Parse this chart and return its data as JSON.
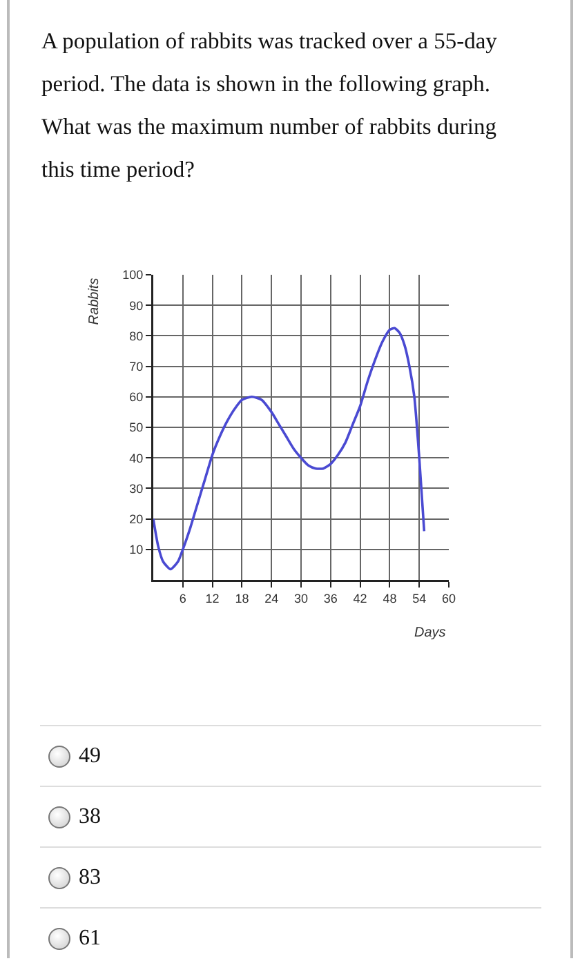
{
  "chart_data": {
    "type": "line",
    "title": "A population of rabbits was tracked over a 55-day period. The data is shown in the following graph. What was the maximum number of rabbits during this time period?",
    "xlabel": "Days",
    "ylabel": "Rabbits",
    "x": [
      0,
      1,
      2,
      3.5,
      5,
      6,
      7.5,
      9,
      10.5,
      12,
      13.5,
      15,
      16.5,
      18,
      20,
      22,
      24,
      25.5,
      27,
      28.5,
      30,
      31.5,
      33,
      34.5,
      36,
      37.5,
      39,
      40.5,
      42,
      43.5,
      45,
      46.5,
      48,
      49,
      50,
      51,
      52,
      53,
      54,
      55
    ],
    "series": [
      {
        "color": "#4a4ad2",
        "values": [
          20,
          11,
          6,
          3.5,
          6,
          10,
          17,
          25,
          33,
          41,
          47,
          52,
          56,
          59,
          60,
          59,
          55,
          51,
          47,
          43,
          40,
          37.5,
          36.5,
          36.5,
          38,
          41,
          45,
          51,
          57,
          65,
          72,
          78,
          82,
          82.5,
          81,
          77,
          70,
          60,
          40,
          16
        ]
      }
    ],
    "xlim": [
      0,
      60
    ],
    "xticks": [
      6,
      12,
      18,
      24,
      30,
      36,
      42,
      48,
      54,
      60
    ],
    "ylim": [
      0,
      100
    ],
    "yticks": [
      10,
      20,
      30,
      40,
      50,
      60,
      70,
      80,
      90,
      100
    ],
    "grid": true,
    "annotations": [
      "49",
      "38",
      "83",
      "61"
    ]
  }
}
